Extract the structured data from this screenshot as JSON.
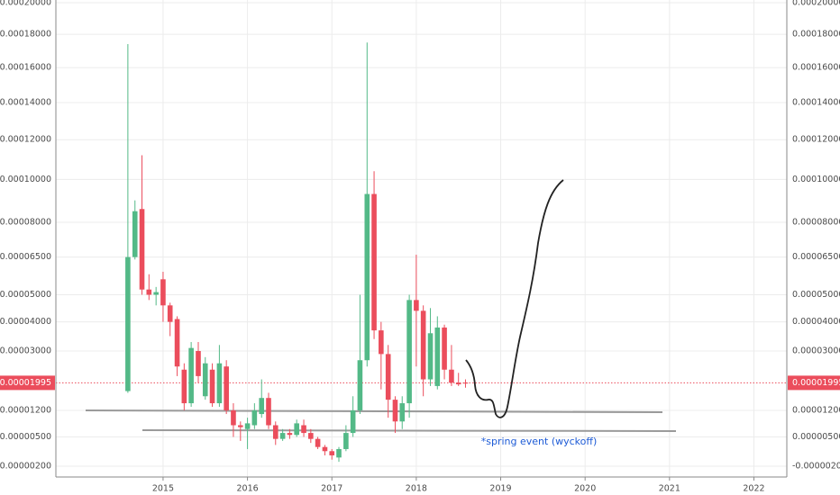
{
  "chart_data": {
    "type": "candlestick",
    "annotation": "*spring event (wyckoff)",
    "up_color": "#53b987",
    "down_color": "#eb4d5c",
    "grid": true,
    "price_line": {
      "value": 1.995e-05,
      "color": "#eb4d5c"
    },
    "x": [
      2014.583,
      2014.667,
      2014.75,
      2014.833,
      2014.917,
      2015.0,
      2015.083,
      2015.167,
      2015.25,
      2015.333,
      2015.417,
      2015.5,
      2015.583,
      2015.667,
      2015.75,
      2015.833,
      2015.917,
      2016.0,
      2016.083,
      2016.167,
      2016.25,
      2016.333,
      2016.417,
      2016.5,
      2016.583,
      2016.667,
      2016.75,
      2016.833,
      2016.917,
      2017.0,
      2017.083,
      2017.167,
      2017.25,
      2017.333,
      2017.417,
      2017.5,
      2017.583,
      2017.667,
      2017.75,
      2017.833,
      2017.917,
      2018.0,
      2018.083,
      2018.167,
      2018.25,
      2018.333,
      2018.417,
      2018.5,
      2018.583
    ],
    "open": [
      1.75e-05,
      6.5e-05,
      8.6e-05,
      5.2e-05,
      5e-05,
      5.6e-05,
      4.6e-05,
      4.1e-05,
      2.4e-05,
      1.4e-05,
      3e-05,
      1.6e-05,
      2.4e-05,
      1.4e-05,
      2.5e-05,
      1.2e-05,
      8e-06,
      7e-06,
      8e-06,
      1.1e-05,
      1.55e-05,
      8e-06,
      4.5e-06,
      6e-06,
      5.5e-06,
      8e-06,
      6e-06,
      4.5e-06,
      2.5e-06,
      1.5e-06,
      0,
      2e-06,
      6e-06,
      1.2e-05,
      2.7e-05,
      9.3e-05,
      3.7e-05,
      2.9e-05,
      1.5e-05,
      9e-06,
      1.4e-05,
      4.8e-05,
      4.4e-05,
      2.1e-05,
      1.9e-05,
      3.8e-05,
      2.4e-05,
      2e-05,
      2e-05
    ],
    "high": [
      0.000174,
      9e-05,
      0.000112,
      5.8e-05,
      5.3e-05,
      5.9e-05,
      4.7e-05,
      4.2e-05,
      2.6e-05,
      3.3e-05,
      3.3e-05,
      2.8e-05,
      2.6e-05,
      3.2e-05,
      2.7e-05,
      1.4e-05,
      9e-06,
      1e-05,
      1.4e-05,
      2.1e-05,
      1.7e-05,
      9e-06,
      7e-06,
      7e-06,
      9.5e-06,
      9.5e-06,
      7e-06,
      5e-06,
      3e-06,
      2e-06,
      2.5e-06,
      8e-06,
      1.6e-05,
      5e-05,
      0.000175,
      0.000104,
      4e-05,
      3.2e-05,
      1.6e-05,
      1.6e-05,
      5e-05,
      6.6e-05,
      4.6e-05,
      4.5e-05,
      4.2e-05,
      3.9e-05,
      3.2e-05,
      2.3e-05,
      2.1e-05
    ],
    "low": [
      1.7e-05,
      6.4e-05,
      5e-05,
      4.8e-05,
      4.6e-05,
      4e-05,
      3.5e-05,
      2.2e-05,
      1.2e-05,
      1.3e-05,
      2e-05,
      1.5e-05,
      1.3e-05,
      1.3e-05,
      1.1e-05,
      5e-06,
      4e-06,
      2e-06,
      7e-06,
      1e-05,
      7e-06,
      3e-06,
      4e-06,
      4.5e-06,
      5e-06,
      5e-06,
      3.5e-06,
      2e-06,
      5e-07,
      -5e-07,
      -1e-06,
      1.5e-06,
      5e-06,
      1.1e-05,
      2.5e-05,
      3.4e-05,
      1.8e-05,
      1e-05,
      6e-06,
      7e-06,
      1e-05,
      2.5e-05,
      1.6e-05,
      1.9e-05,
      1.8e-05,
      2.1e-05,
      1.9e-05,
      1.9e-05,
      1.85e-05
    ],
    "close": [
      6.5e-05,
      8.5e-05,
      5.2e-05,
      5e-05,
      5.1e-05,
      4.6e-05,
      4e-05,
      2.5e-05,
      1.4e-05,
      3.1e-05,
      2.2e-05,
      2.6e-05,
      1.4e-05,
      2.6e-05,
      1.2e-05,
      8e-06,
      7.5e-06,
      8.5e-06,
      1.2e-05,
      1.55e-05,
      8e-06,
      4.5e-06,
      6e-06,
      5.5e-06,
      8.5e-06,
      6e-06,
      4.5e-06,
      2.5e-06,
      1.5e-06,
      5e-07,
      2e-06,
      6e-06,
      1.2e-05,
      2.7e-05,
      9.3e-05,
      3.7e-05,
      2.9e-05,
      1.5e-05,
      9e-06,
      1.4e-05,
      4.8e-05,
      4.4e-05,
      2.1e-05,
      3.6e-05,
      3.8e-05,
      2.4e-05,
      2e-05,
      1.95e-05,
      1.995e-05
    ],
    "xlim": [
      2013.73,
      2022.39
    ],
    "xticks": [
      2015,
      2016,
      2017,
      2018,
      2019,
      2020,
      2021,
      2022
    ],
    "ylim": [
      -3e-06,
      0.0002
    ],
    "yticks": [
      {
        "value": -2e-06,
        "label": "-0.00000200"
      },
      {
        "value": 5e-06,
        "label": "0.00000500"
      },
      {
        "value": 1.2e-05,
        "label": "0.00001200"
      },
      {
        "value": 3e-05,
        "label": "0.00003000"
      },
      {
        "value": 4e-05,
        "label": "0.00004000"
      },
      {
        "value": 5e-05,
        "label": "0.00005000"
      },
      {
        "value": 6.5e-05,
        "label": "0.00006500"
      },
      {
        "value": 8e-05,
        "label": "0.00008000"
      },
      {
        "value": 0.0001,
        "label": "0.00010000"
      },
      {
        "value": 0.00012,
        "label": "0.00012000"
      },
      {
        "value": 0.00014,
        "label": "0.00014000"
      },
      {
        "value": 0.00016,
        "label": "0.00016000"
      },
      {
        "value": 0.00018,
        "label": "0.00018000"
      },
      {
        "value": 0.0002,
        "label": "0.00020000"
      }
    ]
  }
}
